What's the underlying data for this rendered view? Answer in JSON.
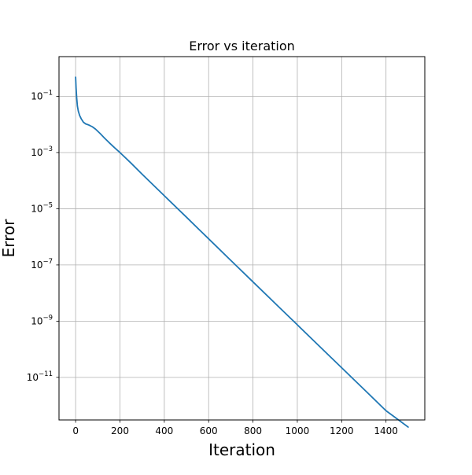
{
  "chart_data": {
    "type": "line",
    "title": "Error vs iteration",
    "xlabel": "Iteration",
    "ylabel": "Error",
    "xlim": [
      -75,
      1575
    ],
    "ylim": [
      3.05e-13,
      2.59
    ],
    "y_scale": "log",
    "grid": true,
    "xticks": [
      0,
      200,
      400,
      600,
      800,
      1000,
      1200,
      1400
    ],
    "yticks": [
      {
        "value": 1e-11,
        "mantissa": "10",
        "exponent": "−11"
      },
      {
        "value": 1e-09,
        "mantissa": "10",
        "exponent": "−9"
      },
      {
        "value": 1e-07,
        "mantissa": "10",
        "exponent": "−7"
      },
      {
        "value": 1e-05,
        "mantissa": "10",
        "exponent": "−5"
      },
      {
        "value": 0.001,
        "mantissa": "10",
        "exponent": "−3"
      },
      {
        "value": 0.1,
        "mantissa": "10",
        "exponent": "−1"
      }
    ],
    "series": [
      {
        "color": "#1f77b4",
        "x": [
          0,
          2,
          5,
          8,
          12,
          18,
          25,
          35,
          45,
          60,
          75,
          90,
          110,
          130,
          150,
          175,
          200,
          250,
          300,
          400,
          500,
          600,
          700,
          800,
          900,
          1000,
          1100,
          1200,
          1300,
          1400,
          1500
        ],
        "y": [
          0.48,
          0.2,
          0.085,
          0.045,
          0.03,
          0.021,
          0.016,
          0.012,
          0.0105,
          0.0095,
          0.0083,
          0.0068,
          0.0048,
          0.0033,
          0.0023,
          0.0015,
          0.001,
          0.00042,
          0.00017,
          2.9e-05,
          5e-06,
          8.5e-07,
          1.45e-07,
          2.5e-08,
          4.3e-09,
          7.4e-10,
          1.27e-10,
          2.2e-11,
          3.8e-12,
          6.5e-13,
          1.7e-13
        ]
      }
    ]
  }
}
